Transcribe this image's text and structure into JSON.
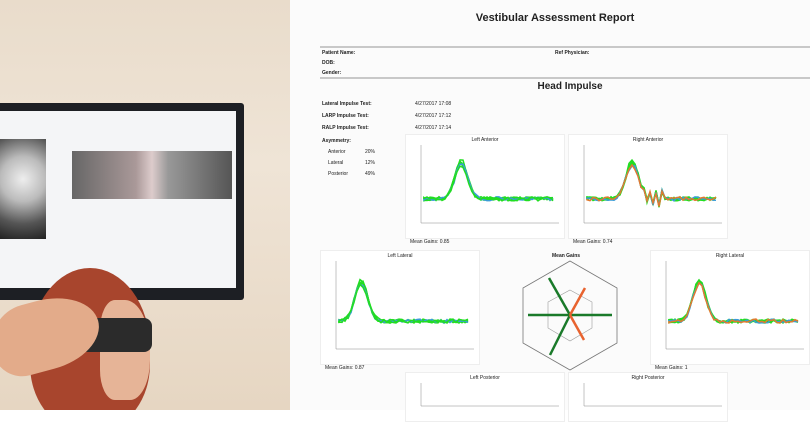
{
  "report": {
    "title": "Vestibular Assessment Report",
    "patient_name_label": "Patient Name:",
    "ref_physician_label": "Ref Physician:",
    "dob_label": "DOB:",
    "gender_label": "Gender:",
    "section": "Head Impulse",
    "tests": [
      {
        "label": "Lateral Impulse Test:",
        "value": "4/27/2017 17:08"
      },
      {
        "label": "LARP Impulse Test:",
        "value": "4/27/2017 17:12"
      },
      {
        "label": "RALP Impulse Test:",
        "value": "4/27/2017 17:14"
      }
    ],
    "asymmetry": {
      "label": "Asymmetry:",
      "rows": [
        {
          "label": "Anterior",
          "value": "20%"
        },
        {
          "label": "Lateral",
          "value": "12%"
        },
        {
          "label": "Posterior",
          "value": "49%"
        }
      ]
    },
    "charts": [
      {
        "title": "Left Anterior",
        "caption": "Mean Gains: 0.85"
      },
      {
        "title": "Right Anterior",
        "caption": "Mean Gains: 0.74"
      },
      {
        "title": "Left Lateral",
        "caption": "Mean Gains: 0.87"
      },
      {
        "title": "Right Lateral",
        "caption": "Mean Gains: 1"
      },
      {
        "title": "Left Posterior",
        "caption": ""
      },
      {
        "title": "Right Posterior",
        "caption": ""
      }
    ],
    "polar_title": "Mean Gains",
    "colors": {
      "trace": "#22dd22",
      "polar_green": "#1a7a2a",
      "polar_orange": "#e8632f"
    }
  }
}
